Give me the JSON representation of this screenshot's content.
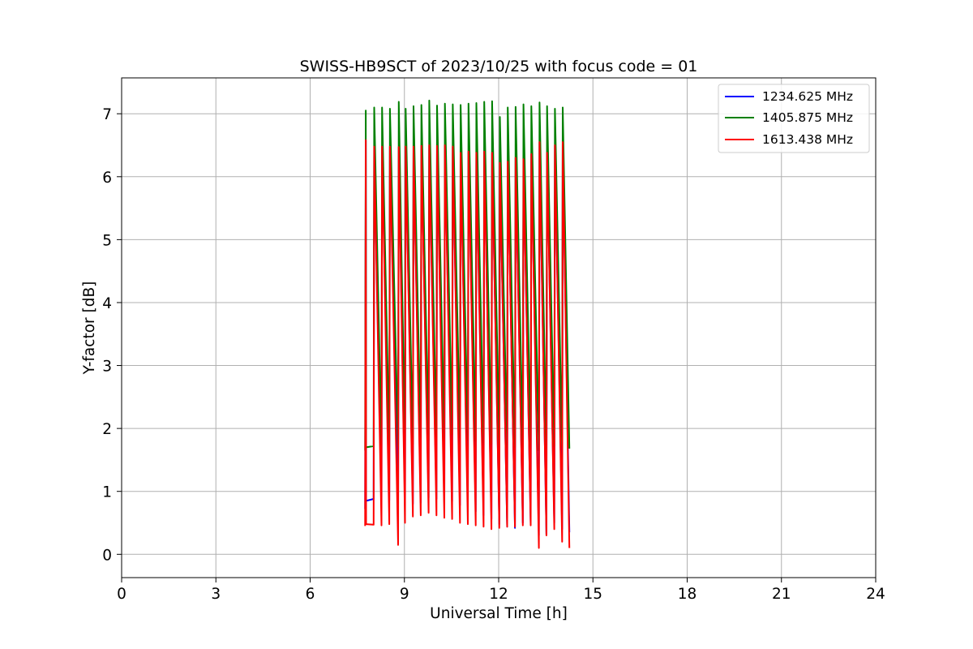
{
  "chart_data": {
    "type": "line",
    "title": "SWISS-HB9SCT of 2023/10/25 with focus code = 01",
    "xlabel": "Universal Time [h]",
    "ylabel": "Y-factor [dB]",
    "xlim": [
      0,
      24
    ],
    "ylim": [
      -0.37,
      7.57
    ],
    "xticks": [
      0,
      3,
      6,
      9,
      12,
      15,
      18,
      21,
      24
    ],
    "yticks": [
      0,
      1,
      2,
      3,
      4,
      5,
      6,
      7
    ],
    "grid": true,
    "legend_position": "top-right",
    "series": [
      {
        "name": "1234.625 MHz",
        "color": "#0000ff",
        "x": [
          7.75,
          7.77,
          7.78,
          8.02,
          8.04,
          8.27,
          8.29,
          8.52,
          8.54,
          8.8,
          8.82,
          9.02,
          9.04,
          9.27,
          9.29,
          9.52,
          9.54,
          9.77,
          9.79,
          10.02,
          10.04,
          10.27,
          10.29,
          10.52,
          10.54,
          10.77,
          10.79,
          11.02,
          11.04,
          11.27,
          11.29,
          11.52,
          11.54,
          11.77,
          11.79,
          12.02,
          12.04,
          12.27,
          12.29,
          12.52,
          12.54,
          12.77,
          12.79,
          13.02,
          13.04,
          13.28,
          13.3,
          13.52,
          13.54,
          13.77,
          13.79,
          14.02,
          14.04,
          14.25
        ],
        "y": [
          0.72,
          6.58,
          0.85,
          0.88,
          6.48,
          0.8,
          6.48,
          0.86,
          6.48,
          0.75,
          6.47,
          0.76,
          6.48,
          0.8,
          6.48,
          0.82,
          6.49,
          0.9,
          6.5,
          0.88,
          6.49,
          0.86,
          6.5,
          0.84,
          6.48,
          0.78,
          6.38,
          0.74,
          6.4,
          0.68,
          6.38,
          0.62,
          6.4,
          0.56,
          6.38,
          0.48,
          6.22,
          0.44,
          6.24,
          0.42,
          6.3,
          0.5,
          6.28,
          0.5,
          6.36,
          0.3,
          6.55,
          0.32,
          6.38,
          0.5,
          6.5,
          0.4,
          6.55,
          0.35
        ]
      },
      {
        "name": "1405.875 MHz",
        "color": "#008000",
        "x": [
          7.75,
          7.77,
          7.78,
          8.02,
          8.04,
          8.27,
          8.29,
          8.52,
          8.54,
          8.8,
          8.82,
          9.02,
          9.04,
          9.27,
          9.29,
          9.52,
          9.54,
          9.77,
          9.79,
          10.02,
          10.04,
          10.27,
          10.29,
          10.52,
          10.54,
          10.77,
          10.79,
          11.02,
          11.04,
          11.27,
          11.29,
          11.52,
          11.54,
          11.77,
          11.79,
          12.02,
          12.04,
          12.27,
          12.29,
          12.52,
          12.54,
          12.77,
          12.79,
          13.02,
          13.04,
          13.28,
          13.3,
          13.52,
          13.54,
          13.77,
          13.79,
          14.02,
          14.04,
          14.25
        ],
        "y": [
          1.65,
          7.05,
          1.7,
          1.72,
          7.1,
          1.68,
          7.1,
          1.7,
          7.08,
          1.72,
          7.19,
          1.7,
          7.08,
          1.75,
          7.12,
          1.78,
          7.14,
          1.8,
          7.21,
          1.8,
          7.13,
          1.82,
          7.16,
          1.9,
          7.15,
          1.85,
          7.14,
          1.82,
          7.16,
          1.8,
          7.17,
          1.78,
          7.19,
          1.75,
          7.2,
          1.72,
          6.95,
          1.7,
          7.1,
          1.7,
          7.11,
          1.72,
          7.15,
          1.7,
          7.12,
          1.65,
          7.18,
          1.68,
          7.12,
          1.72,
          7.08,
          1.7,
          7.1,
          1.68
        ]
      },
      {
        "name": "1613.438 MHz",
        "color": "#ff0000",
        "x": [
          7.75,
          7.77,
          7.78,
          8.02,
          8.04,
          8.27,
          8.29,
          8.52,
          8.54,
          8.8,
          8.82,
          9.02,
          9.04,
          9.27,
          9.29,
          9.52,
          9.54,
          9.77,
          9.79,
          10.02,
          10.04,
          10.27,
          10.29,
          10.52,
          10.54,
          10.77,
          10.79,
          11.02,
          11.04,
          11.27,
          11.29,
          11.52,
          11.54,
          11.77,
          11.79,
          12.02,
          12.04,
          12.27,
          12.29,
          12.52,
          12.54,
          12.77,
          12.79,
          13.02,
          13.04,
          13.28,
          13.3,
          13.52,
          13.54,
          13.77,
          13.79,
          14.02,
          14.04,
          14.25
        ],
        "y": [
          0.45,
          6.58,
          0.48,
          0.47,
          6.48,
          0.46,
          6.48,
          0.48,
          6.48,
          0.15,
          6.47,
          0.5,
          6.48,
          0.6,
          6.48,
          0.62,
          6.49,
          0.66,
          6.5,
          0.62,
          6.49,
          0.58,
          6.5,
          0.56,
          6.48,
          0.5,
          6.38,
          0.48,
          6.4,
          0.46,
          6.38,
          0.44,
          6.4,
          0.4,
          6.38,
          0.42,
          6.22,
          0.44,
          6.24,
          0.44,
          6.3,
          0.46,
          6.28,
          0.46,
          6.36,
          0.1,
          6.55,
          0.3,
          6.38,
          0.4,
          6.5,
          0.2,
          6.55,
          0.1
        ]
      }
    ]
  }
}
